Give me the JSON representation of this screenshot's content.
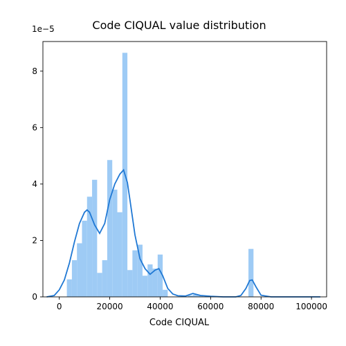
{
  "chart_data": {
    "type": "bar",
    "title": "Code CIQUAL value distribution",
    "xlabel": "Code CIQUAL",
    "ylabel": "",
    "y_scale_label": "1e−5",
    "y_scale_factor": 1e-05,
    "xlim": [
      -6500,
      106000
    ],
    "ylim": [
      0,
      9.05
    ],
    "xticks": [
      0,
      20000,
      40000,
      60000,
      80000,
      100000
    ],
    "yticks": [
      0,
      2,
      4,
      6,
      8
    ],
    "grid": false,
    "legend": "none",
    "colors": {
      "bar": "#9ecbf5",
      "kde": "#1f78d4"
    },
    "histogram": {
      "bin_edges": [
        1000,
        3000,
        5000,
        7000,
        9000,
        11000,
        13000,
        15000,
        17000,
        19000,
        21000,
        23000,
        25000,
        27000,
        29000,
        31000,
        33000,
        35000,
        37000,
        39000,
        41000,
        43000,
        45000,
        47000,
        49000,
        51000,
        53000,
        55000,
        57000,
        59000,
        61000,
        63000,
        65000,
        67000,
        69000,
        71000,
        73000,
        75000,
        77000
      ],
      "values": [
        0.0,
        0.62,
        1.3,
        1.9,
        2.7,
        3.55,
        4.15,
        0.85,
        1.3,
        4.85,
        3.8,
        3.0,
        8.65,
        0.95,
        1.65,
        1.85,
        0.75,
        1.15,
        1.0,
        1.5,
        0.25,
        0,
        0,
        0,
        0,
        0.05,
        0.08,
        0.05,
        0,
        0,
        0,
        0,
        0,
        0,
        0,
        0,
        0,
        1.7
      ]
    },
    "kde": {
      "x": [
        -5000,
        -2000,
        0,
        2000,
        4000,
        6000,
        8000,
        10000,
        11000,
        12000,
        14000,
        16000,
        18000,
        20000,
        22000,
        24000,
        25500,
        27000,
        28000,
        30000,
        32000,
        34000,
        36000,
        38000,
        39500,
        41000,
        43000,
        45000,
        47000,
        50000,
        53000,
        56000,
        60000,
        65000,
        70000,
        72000,
        74000,
        75500,
        76500,
        78000,
        80000,
        84000,
        90000,
        97000,
        103500
      ],
      "y": [
        0.0,
        0.05,
        0.25,
        0.6,
        1.2,
        1.95,
        2.6,
        3.0,
        3.08,
        3.0,
        2.55,
        2.25,
        2.6,
        3.45,
        4.0,
        4.35,
        4.5,
        4.05,
        3.45,
        2.2,
        1.35,
        1.0,
        0.8,
        0.95,
        1.0,
        0.75,
        0.3,
        0.1,
        0.04,
        0.03,
        0.12,
        0.05,
        0.02,
        0.0,
        0.0,
        0.05,
        0.3,
        0.58,
        0.6,
        0.35,
        0.06,
        0.0,
        0.0,
        0.0,
        0.0
      ]
    }
  }
}
